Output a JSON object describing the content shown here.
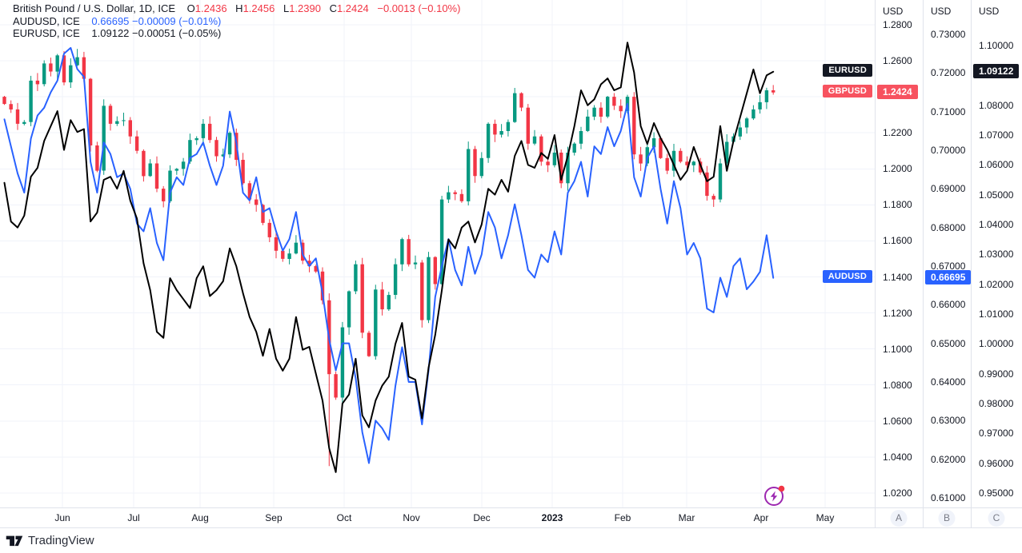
{
  "legend": {
    "row1": {
      "title": "British Pound / U.S. Dollar, 1D, ICE",
      "o_label": "O",
      "o": "1.2436",
      "h_label": "H",
      "h": "1.2456",
      "l_label": "L",
      "l": "1.2390",
      "c_label": "C",
      "c": "1.2424",
      "change": "−0.0013 (−0.10%)"
    },
    "row2": {
      "title": "AUDUSD, ICE",
      "text": "0.66695 −0.00009 (−0.01%)"
    },
    "row3": {
      "title": "EURUSD, ICE",
      "text": "1.09122 −0.00051 (−0.05%)"
    }
  },
  "footer": {
    "brand": "TradingView"
  },
  "colors": {
    "up": "#089981",
    "down": "#f23645",
    "blue": "#2962ff",
    "black_line": "#000000",
    "grid": "#f0f3fa",
    "border": "#e0e3eb",
    "text": "#131722",
    "tag_red": "#f7525f",
    "tag_blue": "#2962ff",
    "tag_black": "#131722",
    "badge_bg": "#f0f3fa",
    "badge_text": "#787b86",
    "marker_purple": "#9c27b0",
    "marker_dot": "#f23645"
  },
  "chart_data": {
    "type": "mixed",
    "title": "British Pound / U.S. Dollar, 1D, ICE with AUDUSD and EURUSD line overlays",
    "legend_position": "top-left",
    "grid": true,
    "x_start_frac": 0.005,
    "x_end_frac": 0.884,
    "x_labels": [
      {
        "t": "Jun",
        "f": 0.0714
      },
      {
        "t": "Jul",
        "f": 0.1528
      },
      {
        "t": "Aug",
        "f": 0.2288
      },
      {
        "t": "Sep",
        "f": 0.3129
      },
      {
        "t": "Oct",
        "f": 0.3934
      },
      {
        "t": "Nov",
        "f": 0.4703
      },
      {
        "t": "Dec",
        "f": 0.5508
      },
      {
        "t": "2023",
        "f": 0.6313,
        "bold": true
      },
      {
        "t": "Feb",
        "f": 0.7118
      },
      {
        "t": "Mar",
        "f": 0.785
      },
      {
        "t": "Apr",
        "f": 0.8701
      },
      {
        "t": "May",
        "f": 0.9433
      }
    ],
    "scales": {
      "a": {
        "currency": "USD",
        "badge": "A",
        "min": 1.012,
        "max": 1.29375,
        "ticks": [
          {
            "t": "1.2800",
            "v": 1.28
          },
          {
            "t": "1.2600",
            "v": 1.26
          },
          {
            "t": "1.2200",
            "v": 1.22
          },
          {
            "t": "1.2000",
            "v": 1.2
          },
          {
            "t": "1.1800",
            "v": 1.18
          },
          {
            "t": "1.1600",
            "v": 1.16
          },
          {
            "t": "1.1400",
            "v": 1.14
          },
          {
            "t": "1.1200",
            "v": 1.12
          },
          {
            "t": "1.1000",
            "v": 1.1
          },
          {
            "t": "1.0800",
            "v": 1.08
          },
          {
            "t": "1.0600",
            "v": 1.06
          },
          {
            "t": "1.0400",
            "v": 1.04
          },
          {
            "t": "1.0200",
            "v": 1.02
          }
        ],
        "grid_values": [
          1.28,
          1.26,
          1.24,
          1.22,
          1.2,
          1.18,
          1.16,
          1.14,
          1.12,
          1.1,
          1.08,
          1.06,
          1.04,
          1.02
        ],
        "price_label": {
          "text": "1.2424",
          "v": 1.2424,
          "bg": "#f7525f"
        }
      },
      "b": {
        "currency": "USD",
        "badge": "B",
        "min": 0.60751,
        "max": 0.73889,
        "ticks": [
          {
            "t": "0.73000",
            "v": 0.73
          },
          {
            "t": "0.72000",
            "v": 0.72
          },
          {
            "t": "0.71000",
            "v": 0.71
          },
          {
            "t": "0.70000",
            "v": 0.7
          },
          {
            "t": "0.69000",
            "v": 0.69
          },
          {
            "t": "0.68000",
            "v": 0.68
          },
          {
            "t": "0.67000",
            "v": 0.67
          },
          {
            "t": "0.66000",
            "v": 0.66
          },
          {
            "t": "0.65000",
            "v": 0.65
          },
          {
            "t": "0.64000",
            "v": 0.64
          },
          {
            "t": "0.63000",
            "v": 0.63
          },
          {
            "t": "0.62000",
            "v": 0.62
          },
          {
            "t": "0.61000",
            "v": 0.61
          }
        ],
        "grid_values": [],
        "price_label": {
          "text": "0.66695",
          "v": 0.66695,
          "bg": "#2962ff"
        }
      },
      "c": {
        "currency": "USD",
        "badge": "C",
        "min": 0.94515,
        "max": 1.11527,
        "ticks": [
          {
            "t": "1.10000",
            "v": 1.1
          },
          {
            "t": "1.08000",
            "v": 1.08
          },
          {
            "t": "1.07000",
            "v": 1.07
          },
          {
            "t": "1.06000",
            "v": 1.06
          },
          {
            "t": "1.05000",
            "v": 1.05
          },
          {
            "t": "1.04000",
            "v": 1.04
          },
          {
            "t": "1.03000",
            "v": 1.03
          },
          {
            "t": "1.02000",
            "v": 1.02
          },
          {
            "t": "1.01000",
            "v": 1.01
          },
          {
            "t": "1.00000",
            "v": 1.0
          },
          {
            "t": "0.99000",
            "v": 0.99
          },
          {
            "t": "0.98000",
            "v": 0.98
          },
          {
            "t": "0.97000",
            "v": 0.97
          },
          {
            "t": "0.96000",
            "v": 0.96
          },
          {
            "t": "0.95000",
            "v": 0.95
          }
        ],
        "grid_values": [],
        "price_label": {
          "text": "1.09122",
          "v": 1.09122,
          "bg": "#131722"
        }
      }
    },
    "series": [
      {
        "name": "GBPUSD",
        "type": "candlestick",
        "scale": "a",
        "up_color": "#089981",
        "down_color": "#f23645",
        "first_open": 1.24,
        "spike_high": {
          "index": 11,
          "high": 1.2666
        },
        "spike_low": {
          "index": 49,
          "low": 1.035
        },
        "closes": [
          1.236,
          1.233,
          1.225,
          1.226,
          1.249,
          1.247,
          1.2585,
          1.254,
          1.263,
          1.248,
          1.2575,
          1.262,
          1.25,
          1.213,
          1.199,
          1.235,
          1.225,
          1.2265,
          1.227,
          1.218,
          1.21,
          1.196,
          1.203,
          1.189,
          1.182,
          1.199,
          1.2,
          1.204,
          1.216,
          1.217,
          1.225,
          1.216,
          1.207,
          1.208,
          1.22,
          1.205,
          1.192,
          1.183,
          1.18,
          1.17,
          1.162,
          1.1545,
          1.15,
          1.153,
          1.159,
          1.149,
          1.146,
          1.143,
          1.127,
          1.086,
          1.073,
          1.112,
          1.132,
          1.147,
          1.109,
          1.096,
          1.133,
          1.122,
          1.13,
          1.147,
          1.161,
          1.147,
          1.148,
          1.116,
          1.151,
          1.136,
          1.183,
          1.187,
          1.186,
          1.182,
          1.211,
          1.196,
          1.206,
          1.225,
          1.219,
          1.221,
          1.226,
          1.242,
          1.234,
          1.214,
          1.218,
          1.204,
          1.202,
          1.209,
          1.192,
          1.209,
          1.214,
          1.221,
          1.229,
          1.234,
          1.229,
          1.24,
          1.235,
          1.232,
          1.24,
          1.208,
          1.203,
          1.212,
          1.217,
          1.206,
          1.199,
          1.21,
          1.204,
          1.202,
          1.204,
          1.198,
          1.185,
          1.183,
          1.203,
          1.215,
          1.218,
          1.223,
          1.228,
          1.233,
          1.237,
          1.2436,
          1.2424
        ]
      },
      {
        "name": "AUDUSD",
        "type": "line",
        "scale": "b",
        "color": "#2962ff",
        "values": [
          0.708,
          0.701,
          0.694,
          0.689,
          0.703,
          0.709,
          0.711,
          0.715,
          0.718,
          0.725,
          0.7265,
          0.721,
          0.719,
          0.697,
          0.689,
          0.702,
          0.699,
          0.693,
          0.694,
          0.69,
          0.681,
          0.679,
          0.685,
          0.676,
          0.6715,
          0.689,
          0.693,
          0.691,
          0.698,
          0.699,
          0.702,
          0.696,
          0.691,
          0.696,
          0.71,
          0.702,
          0.689,
          0.687,
          0.693,
          0.684,
          0.685,
          0.679,
          0.674,
          0.677,
          0.684,
          0.673,
          0.67,
          0.672,
          0.663,
          0.651,
          0.643,
          0.65,
          0.65,
          0.641,
          0.627,
          0.619,
          0.63,
          0.628,
          0.625,
          0.639,
          0.649,
          0.64,
          0.64,
          0.629,
          0.643,
          0.662,
          0.67,
          0.677,
          0.669,
          0.665,
          0.675,
          0.668,
          0.673,
          0.684,
          0.68,
          0.672,
          0.678,
          0.686,
          0.678,
          0.669,
          0.667,
          0.673,
          0.671,
          0.679,
          0.673,
          0.689,
          0.692,
          0.697,
          0.688,
          0.701,
          0.699,
          0.706,
          0.701,
          0.705,
          0.712,
          0.693,
          0.688,
          0.698,
          0.701,
          0.69,
          0.681,
          0.692,
          0.685,
          0.673,
          0.676,
          0.672,
          0.659,
          0.658,
          0.667,
          0.662,
          0.67,
          0.672,
          0.664,
          0.666,
          0.6685,
          0.678,
          0.66695
        ]
      },
      {
        "name": "EURUSD",
        "type": "line",
        "scale": "c",
        "color": "#000000",
        "values": [
          1.054,
          1.041,
          1.039,
          1.043,
          1.056,
          1.059,
          1.068,
          1.073,
          1.078,
          1.065,
          1.075,
          1.071,
          1.072,
          1.041,
          1.044,
          1.055,
          1.056,
          1.052,
          1.058,
          1.048,
          1.042,
          1.027,
          1.018,
          1.004,
          1.002,
          1.022,
          1.018,
          1.015,
          1.012,
          1.022,
          1.026,
          1.016,
          1.018,
          1.021,
          1.032,
          1.026,
          1.017,
          1.009,
          1.004,
          0.996,
          1.005,
          0.995,
          0.991,
          0.995,
          1.009,
          0.998,
          0.999,
          0.99,
          0.981,
          0.965,
          0.957,
          0.98,
          0.983,
          0.995,
          0.976,
          0.972,
          0.981,
          0.986,
          0.989,
          1.0,
          1.007,
          0.989,
          0.988,
          0.975,
          0.992,
          1.003,
          1.018,
          1.035,
          1.032,
          1.039,
          1.041,
          1.034,
          1.04,
          1.052,
          1.05,
          1.055,
          1.051,
          1.063,
          1.068,
          1.06,
          1.059,
          1.064,
          1.062,
          1.07,
          1.055,
          1.063,
          1.073,
          1.085,
          1.08,
          1.082,
          1.087,
          1.089,
          1.085,
          1.086,
          1.101,
          1.091,
          1.073,
          1.067,
          1.074,
          1.069,
          1.065,
          1.06,
          1.055,
          1.058,
          1.066,
          1.06,
          1.0545,
          1.056,
          1.073,
          1.058,
          1.068,
          1.076,
          1.084,
          1.092,
          1.084,
          1.09,
          1.09122
        ]
      }
    ],
    "series_tags": [
      {
        "text": "EURUSD",
        "v": 1.09122,
        "scale": "c",
        "bg": "#131722"
      },
      {
        "text": "GBPUSD",
        "v": 1.2424,
        "scale": "a",
        "bg": "#f7525f"
      },
      {
        "text": "AUDUSD",
        "v": 0.66695,
        "scale": "b",
        "bg": "#2962ff"
      }
    ],
    "event_marker": {
      "x_frac": 0.8847,
      "y_frac": 0.978
    }
  }
}
